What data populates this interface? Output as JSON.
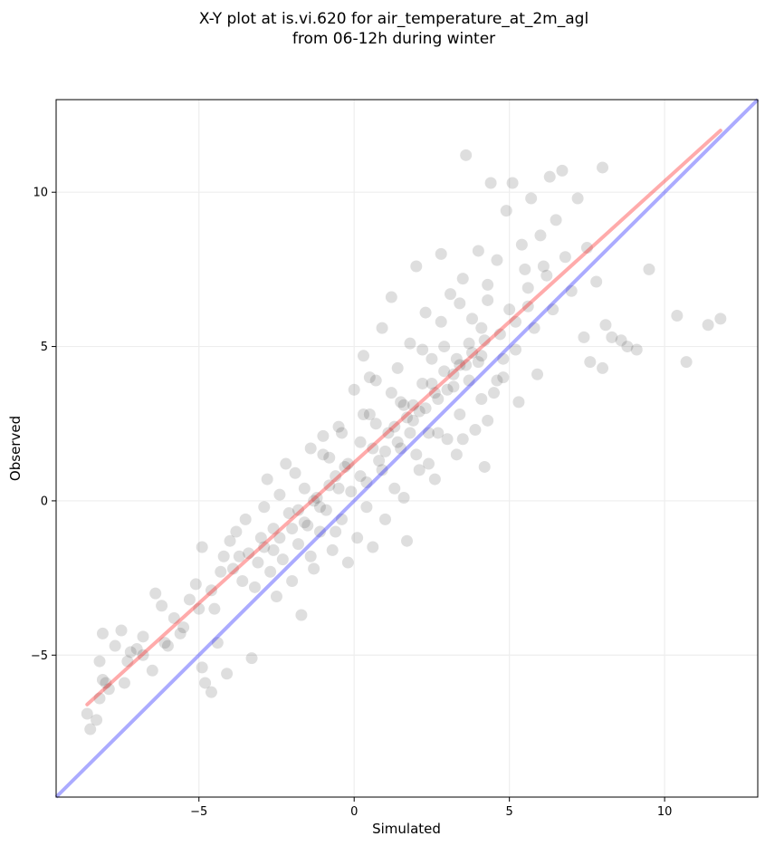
{
  "chart_data": {
    "type": "scatter",
    "title": "X-Y plot at is.vi.620 for air_temperature_at_2m_agl",
    "subtitle": "from 06-12h during winter",
    "xlabel": "Simulated",
    "ylabel": "Observed",
    "xlim": [
      -9.6,
      13.0
    ],
    "ylim": [
      -9.6,
      13.0
    ],
    "xticks": [
      -5,
      0,
      5,
      10
    ],
    "yticks": [
      -5,
      0,
      5,
      10
    ],
    "xtick_labels": [
      "−5",
      "0",
      "5",
      "10"
    ],
    "ytick_labels": [
      "−5",
      "0",
      "5",
      "10"
    ],
    "grid": true,
    "legend": "none",
    "colors": {
      "points": "#000000",
      "fit_line": "#ff0000",
      "identity_line": "#0000ff",
      "grid": "#eeeeee"
    },
    "identity_line": {
      "x": [
        -9.6,
        13.0
      ],
      "y": [
        -9.6,
        13.0
      ]
    },
    "fit_line": {
      "x": [
        -8.6,
        11.8
      ],
      "y": [
        -6.6,
        12.0
      ]
    },
    "points": [
      [
        -8.6,
        -6.9
      ],
      [
        -8.5,
        -7.4
      ],
      [
        -8.3,
        -7.1
      ],
      [
        -8.2,
        -6.4
      ],
      [
        -8.1,
        -5.8
      ],
      [
        -8.2,
        -5.2
      ],
      [
        -8.0,
        -5.9
      ],
      [
        -7.9,
        -6.1
      ],
      [
        -8.1,
        -4.3
      ],
      [
        -7.7,
        -4.7
      ],
      [
        -7.5,
        -4.2
      ],
      [
        -7.2,
        -4.9
      ],
      [
        -7.0,
        -4.8
      ],
      [
        -6.8,
        -4.4
      ],
      [
        -7.4,
        -5.9
      ],
      [
        -6.5,
        -5.5
      ],
      [
        -6.4,
        -3.0
      ],
      [
        -6.2,
        -3.4
      ],
      [
        -6.0,
        -4.7
      ],
      [
        -5.8,
        -3.8
      ],
      [
        -5.6,
        -4.3
      ],
      [
        -5.3,
        -3.2
      ],
      [
        -5.1,
        -2.7
      ],
      [
        -4.9,
        -1.5
      ],
      [
        -4.9,
        -5.4
      ],
      [
        -4.8,
        -5.9
      ],
      [
        -4.6,
        -6.2
      ],
      [
        -4.5,
        -3.5
      ],
      [
        -4.3,
        -2.3
      ],
      [
        -4.2,
        -1.8
      ],
      [
        -4.0,
        -1.3
      ],
      [
        -3.8,
        -1.0
      ],
      [
        -4.4,
        -4.6
      ],
      [
        -4.1,
        -5.6
      ],
      [
        -3.6,
        -2.6
      ],
      [
        -3.5,
        -0.6
      ],
      [
        -3.4,
        -1.7
      ],
      [
        -3.3,
        -5.1
      ],
      [
        -3.2,
        -2.8
      ],
      [
        -3.0,
        -1.2
      ],
      [
        -2.9,
        -0.2
      ],
      [
        -2.8,
        0.7
      ],
      [
        -2.7,
        -2.3
      ],
      [
        -2.6,
        -0.9
      ],
      [
        -2.5,
        -3.1
      ],
      [
        -2.4,
        0.2
      ],
      [
        -2.3,
        -1.9
      ],
      [
        -2.2,
        1.2
      ],
      [
        -2.1,
        -0.4
      ],
      [
        -2.0,
        -2.6
      ],
      [
        -1.9,
        0.9
      ],
      [
        -1.8,
        -1.4
      ],
      [
        -1.7,
        -3.7
      ],
      [
        -1.6,
        0.4
      ],
      [
        -1.5,
        -0.8
      ],
      [
        -1.4,
        1.7
      ],
      [
        -1.3,
        -2.2
      ],
      [
        -1.2,
        0.1
      ],
      [
        -1.1,
        -1.0
      ],
      [
        -1.0,
        2.1
      ],
      [
        -0.9,
        -0.3
      ],
      [
        -0.8,
        1.4
      ],
      [
        -0.7,
        -1.6
      ],
      [
        -0.6,
        0.8
      ],
      [
        -0.5,
        2.4
      ],
      [
        -0.4,
        -0.6
      ],
      [
        -0.3,
        1.1
      ],
      [
        -0.2,
        -2.0
      ],
      [
        -0.1,
        0.3
      ],
      [
        0.0,
        3.6
      ],
      [
        0.1,
        -1.2
      ],
      [
        0.2,
        1.9
      ],
      [
        0.3,
        4.7
      ],
      [
        0.4,
        0.6
      ],
      [
        0.5,
        2.8
      ],
      [
        0.6,
        -1.5
      ],
      [
        0.7,
        3.9
      ],
      [
        0.8,
        1.3
      ],
      [
        0.9,
        5.6
      ],
      [
        1.0,
        -0.6
      ],
      [
        1.1,
        2.2
      ],
      [
        1.2,
        6.6
      ],
      [
        1.3,
        0.4
      ],
      [
        1.4,
        4.3
      ],
      [
        1.5,
        1.7
      ],
      [
        1.6,
        3.1
      ],
      [
        1.7,
        -1.3
      ],
      [
        1.8,
        5.1
      ],
      [
        1.9,
        2.6
      ],
      [
        2.0,
        7.6
      ],
      [
        2.1,
        1.0
      ],
      [
        2.2,
        3.8
      ],
      [
        2.3,
        6.1
      ],
      [
        2.4,
        2.2
      ],
      [
        2.5,
        4.6
      ],
      [
        2.6,
        0.7
      ],
      [
        2.7,
        3.3
      ],
      [
        2.8,
        8.0
      ],
      [
        2.9,
        5.0
      ],
      [
        3.0,
        2.0
      ],
      [
        3.1,
        6.7
      ],
      [
        3.2,
        3.7
      ],
      [
        3.3,
        1.5
      ],
      [
        3.4,
        4.4
      ],
      [
        3.5,
        7.2
      ],
      [
        3.6,
        11.2
      ],
      [
        3.7,
        3.9
      ],
      [
        3.8,
        5.9
      ],
      [
        3.9,
        2.3
      ],
      [
        4.0,
        8.1
      ],
      [
        4.1,
        4.7
      ],
      [
        4.2,
        1.1
      ],
      [
        4.3,
        6.5
      ],
      [
        4.4,
        10.3
      ],
      [
        4.5,
        3.5
      ],
      [
        4.6,
        7.8
      ],
      [
        4.7,
        5.4
      ],
      [
        4.8,
        4.0
      ],
      [
        4.9,
        9.4
      ],
      [
        5.0,
        6.2
      ],
      [
        5.1,
        10.3
      ],
      [
        5.2,
        4.9
      ],
      [
        5.3,
        3.2
      ],
      [
        5.4,
        8.3
      ],
      [
        5.5,
        7.5
      ],
      [
        5.6,
        6.9
      ],
      [
        5.7,
        9.8
      ],
      [
        5.8,
        5.6
      ],
      [
        5.9,
        4.1
      ],
      [
        6.0,
        8.6
      ],
      [
        6.2,
        7.3
      ],
      [
        6.3,
        10.5
      ],
      [
        6.4,
        6.2
      ],
      [
        6.5,
        9.1
      ],
      [
        6.7,
        10.7
      ],
      [
        6.8,
        7.9
      ],
      [
        7.0,
        6.8
      ],
      [
        7.2,
        9.8
      ],
      [
        7.4,
        5.3
      ],
      [
        7.5,
        8.2
      ],
      [
        7.6,
        4.5
      ],
      [
        7.8,
        7.1
      ],
      [
        8.0,
        10.8
      ],
      [
        8.1,
        5.7
      ],
      [
        8.0,
        4.3
      ],
      [
        8.3,
        5.3
      ],
      [
        8.6,
        5.2
      ],
      [
        8.8,
        5.0
      ],
      [
        9.1,
        4.9
      ],
      [
        9.5,
        7.5
      ],
      [
        10.4,
        6.0
      ],
      [
        10.7,
        4.5
      ],
      [
        11.4,
        5.7
      ],
      [
        11.8,
        5.9
      ],
      [
        0.5,
        4.0
      ],
      [
        1.4,
        1.9
      ],
      [
        2.1,
        2.9
      ],
      [
        3.0,
        3.6
      ],
      [
        3.6,
        4.4
      ],
      [
        4.0,
        4.5
      ],
      [
        2.6,
        3.5
      ],
      [
        1.8,
        2.2
      ],
      [
        1.0,
        1.6
      ],
      [
        0.7,
        2.5
      ],
      [
        1.5,
        3.2
      ],
      [
        2.3,
        3.0
      ],
      [
        3.2,
        4.1
      ],
      [
        3.8,
        4.8
      ],
      [
        4.2,
        5.2
      ],
      [
        2.9,
        4.2
      ],
      [
        1.7,
        2.7
      ],
      [
        0.9,
        1.0
      ],
      [
        0.2,
        0.8
      ],
      [
        -0.5,
        0.4
      ],
      [
        -1.1,
        -0.2
      ],
      [
        -1.6,
        -0.7
      ],
      [
        -2.0,
        -0.9
      ],
      [
        -2.4,
        -1.2
      ],
      [
        -2.9,
        -1.5
      ],
      [
        -3.1,
        -2.0
      ],
      [
        -2.6,
        -1.6
      ],
      [
        -1.8,
        -0.3
      ],
      [
        -1.3,
        0.0
      ],
      [
        -0.8,
        0.5
      ],
      [
        -0.2,
        1.2
      ],
      [
        0.6,
        1.7
      ],
      [
        1.3,
        2.4
      ],
      [
        1.9,
        3.1
      ],
      [
        2.5,
        3.8
      ],
      [
        3.3,
        4.6
      ],
      [
        3.7,
        5.1
      ],
      [
        4.1,
        5.6
      ],
      [
        -3.9,
        -2.2
      ],
      [
        -3.7,
        -1.8
      ],
      [
        -4.6,
        -2.9
      ],
      [
        -5.0,
        -3.5
      ],
      [
        -5.5,
        -4.1
      ],
      [
        -6.1,
        -4.6
      ],
      [
        -6.8,
        -5.0
      ],
      [
        -7.3,
        -5.2
      ],
      [
        2.0,
        1.5
      ],
      [
        2.7,
        2.2
      ],
      [
        3.4,
        2.8
      ],
      [
        4.1,
        3.3
      ],
      [
        4.6,
        3.9
      ],
      [
        0.4,
        -0.2
      ],
      [
        -0.6,
        -1.0
      ],
      [
        -1.4,
        -1.8
      ],
      [
        1.2,
        3.5
      ],
      [
        0.3,
        2.8
      ],
      [
        -0.4,
        2.2
      ],
      [
        -1.0,
        1.5
      ],
      [
        2.2,
        4.9
      ],
      [
        2.8,
        5.8
      ],
      [
        3.4,
        6.4
      ],
      [
        4.3,
        7.0
      ],
      [
        1.6,
        0.1
      ],
      [
        2.4,
        1.2
      ],
      [
        3.5,
        2.0
      ],
      [
        4.3,
        2.6
      ],
      [
        4.8,
        4.6
      ],
      [
        5.2,
        5.8
      ],
      [
        5.6,
        6.3
      ],
      [
        6.1,
        7.6
      ]
    ]
  }
}
